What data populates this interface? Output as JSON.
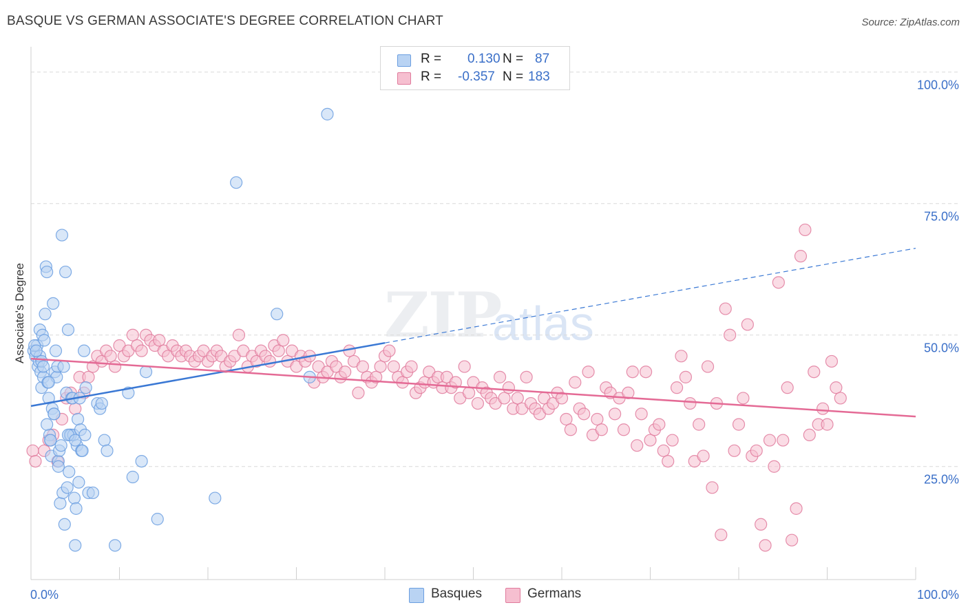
{
  "title": "BASQUE VS GERMAN ASSOCIATE'S DEGREE CORRELATION CHART",
  "source": "Source: ZipAtlas.com",
  "watermark_zip": "ZIP",
  "watermark_atlas": "atlas",
  "legend": {
    "rows": [
      {
        "r_label": "R =",
        "r_value": "0.130",
        "n_label": "N =",
        "n_value": "87",
        "color": "#b9d3f3",
        "border": "#6a9ee0"
      },
      {
        "r_label": "R =",
        "r_value": "-0.357",
        "n_label": "N =",
        "n_value": "183",
        "color": "#f6bfd0",
        "border": "#e07a9c"
      }
    ]
  },
  "bottom_legend": [
    {
      "label": "Basques",
      "color": "#b9d3f3",
      "border": "#6a9ee0"
    },
    {
      "label": "Germans",
      "color": "#f6bfd0",
      "border": "#e07a9c"
    }
  ],
  "chart_data": {
    "type": "scatter",
    "title": "BASQUE VS GERMAN ASSOCIATE'S DEGREE CORRELATION CHART",
    "xlabel": "",
    "ylabel": "Associate's Degree",
    "xlim": [
      0,
      100
    ],
    "ylim": [
      0,
      100
    ],
    "x_tick_labels": [
      "0.0%",
      "100.0%"
    ],
    "y_tick_labels": [
      "100.0%",
      "75.0%",
      "50.0%",
      "25.0%"
    ],
    "y_ticks": [
      100,
      75,
      50,
      25
    ],
    "grid": true,
    "legend_position": "top-center",
    "colors": {
      "basques": "#3a78d4",
      "germans": "#e46a95"
    },
    "series": [
      {
        "name": "Basques",
        "marker_fill": "#b9d3f3",
        "marker_edge": "#6a9ee0",
        "trend": {
          "x": [
            0,
            40
          ],
          "y": [
            36.5,
            48.5
          ],
          "dashed_extension": {
            "x": [
              40,
              100
            ],
            "y": [
              48.5,
              66.5
            ]
          }
        },
        "points": [
          [
            0.3,
            47
          ],
          [
            0.5,
            46
          ],
          [
            0.7,
            48
          ],
          [
            0.8,
            44
          ],
          [
            0.9,
            45
          ],
          [
            1.0,
            51
          ],
          [
            1.1,
            43
          ],
          [
            1.2,
            40
          ],
          [
            1.3,
            50
          ],
          [
            1.4,
            42
          ],
          [
            1.5,
            49
          ],
          [
            1.6,
            54
          ],
          [
            1.7,
            63
          ],
          [
            1.8,
            62
          ],
          [
            1.9,
            41
          ],
          [
            2.0,
            38
          ],
          [
            2.1,
            31
          ],
          [
            2.2,
            30
          ],
          [
            2.3,
            27
          ],
          [
            2.4,
            36
          ],
          [
            2.5,
            56
          ],
          [
            2.6,
            35
          ],
          [
            2.7,
            43
          ],
          [
            2.8,
            47
          ],
          [
            2.9,
            42
          ],
          [
            3.0,
            44
          ],
          [
            3.1,
            26
          ],
          [
            3.2,
            28
          ],
          [
            3.3,
            18
          ],
          [
            3.4,
            29
          ],
          [
            3.5,
            69
          ],
          [
            3.6,
            20
          ],
          [
            3.7,
            44
          ],
          [
            3.8,
            14
          ],
          [
            3.9,
            62
          ],
          [
            4.0,
            39
          ],
          [
            4.1,
            21
          ],
          [
            4.2,
            51
          ],
          [
            4.3,
            24
          ],
          [
            4.4,
            31
          ],
          [
            4.5,
            31
          ],
          [
            4.6,
            38
          ],
          [
            4.7,
            38
          ],
          [
            4.8,
            31
          ],
          [
            4.9,
            19
          ],
          [
            5.0,
            10
          ],
          [
            5.1,
            17
          ],
          [
            5.2,
            29
          ],
          [
            5.3,
            34
          ],
          [
            5.4,
            22
          ],
          [
            5.5,
            38
          ],
          [
            5.6,
            32
          ],
          [
            5.7,
            28
          ],
          [
            5.8,
            28
          ],
          [
            6.0,
            47
          ],
          [
            6.2,
            40
          ],
          [
            6.5,
            20
          ],
          [
            7.5,
            37
          ],
          [
            7.8,
            36
          ],
          [
            8.0,
            37
          ],
          [
            8.3,
            30
          ],
          [
            8.6,
            28
          ],
          [
            9.5,
            10
          ],
          [
            11.0,
            39
          ],
          [
            11.5,
            23
          ],
          [
            12.5,
            26
          ],
          [
            13.0,
            43
          ],
          [
            14.3,
            15
          ],
          [
            20.8,
            19
          ],
          [
            23.2,
            79
          ],
          [
            27.8,
            54
          ],
          [
            31.5,
            42
          ],
          [
            33.5,
            92
          ],
          [
            1.0,
            46
          ],
          [
            1.2,
            45
          ],
          [
            1.8,
            33
          ],
          [
            2.2,
            30
          ],
          [
            2.6,
            35
          ],
          [
            3.1,
            25
          ],
          [
            4.2,
            31
          ],
          [
            5.0,
            30
          ],
          [
            6.1,
            31
          ],
          [
            7.0,
            20
          ],
          [
            0.4,
            48
          ],
          [
            0.6,
            47
          ],
          [
            1.4,
            44
          ],
          [
            2.0,
            41
          ]
        ]
      },
      {
        "name": "Germans",
        "marker_fill": "#f6bfd0",
        "marker_edge": "#e07a9c",
        "trend": {
          "x": [
            0,
            100
          ],
          "y": [
            45.5,
            34.5
          ]
        },
        "points": [
          [
            0.2,
            28
          ],
          [
            0.5,
            26
          ],
          [
            1.5,
            28
          ],
          [
            2.0,
            30
          ],
          [
            2.5,
            31
          ],
          [
            3.0,
            26
          ],
          [
            3.5,
            34
          ],
          [
            4.0,
            38
          ],
          [
            4.5,
            39
          ],
          [
            5.0,
            36
          ],
          [
            5.5,
            42
          ],
          [
            6.0,
            39
          ],
          [
            6.5,
            42
          ],
          [
            7.0,
            44
          ],
          [
            7.5,
            46
          ],
          [
            8.0,
            45
          ],
          [
            8.5,
            47
          ],
          [
            9.0,
            46
          ],
          [
            9.5,
            44
          ],
          [
            10.0,
            48
          ],
          [
            10.5,
            46
          ],
          [
            11.0,
            47
          ],
          [
            11.5,
            50
          ],
          [
            12.0,
            48
          ],
          [
            12.5,
            47
          ],
          [
            13.0,
            50
          ],
          [
            13.5,
            49
          ],
          [
            14.0,
            48
          ],
          [
            14.5,
            49
          ],
          [
            15.0,
            47
          ],
          [
            15.5,
            46
          ],
          [
            16.0,
            48
          ],
          [
            16.5,
            47
          ],
          [
            17.0,
            46
          ],
          [
            17.5,
            47
          ],
          [
            18.0,
            46
          ],
          [
            18.5,
            45
          ],
          [
            19.0,
            46
          ],
          [
            19.5,
            47
          ],
          [
            20.0,
            45
          ],
          [
            20.5,
            46
          ],
          [
            21.0,
            47
          ],
          [
            21.5,
            46
          ],
          [
            22.0,
            44
          ],
          [
            22.5,
            45
          ],
          [
            23.0,
            46
          ],
          [
            23.5,
            50
          ],
          [
            24.0,
            47
          ],
          [
            24.5,
            44
          ],
          [
            25.0,
            46
          ],
          [
            25.5,
            45
          ],
          [
            26.0,
            47
          ],
          [
            26.5,
            46
          ],
          [
            27.0,
            45
          ],
          [
            27.5,
            48
          ],
          [
            28.0,
            47
          ],
          [
            28.5,
            49
          ],
          [
            29.0,
            45
          ],
          [
            29.5,
            47
          ],
          [
            30.0,
            44
          ],
          [
            30.5,
            46
          ],
          [
            31.0,
            45
          ],
          [
            31.5,
            46
          ],
          [
            32.0,
            41
          ],
          [
            32.5,
            44
          ],
          [
            33.0,
            42
          ],
          [
            33.5,
            43
          ],
          [
            34.0,
            45
          ],
          [
            34.5,
            44
          ],
          [
            35.0,
            42
          ],
          [
            35.5,
            43
          ],
          [
            36.0,
            47
          ],
          [
            36.5,
            45
          ],
          [
            37.0,
            39
          ],
          [
            37.5,
            44
          ],
          [
            38.0,
            42
          ],
          [
            38.5,
            41
          ],
          [
            39.0,
            42
          ],
          [
            39.5,
            44
          ],
          [
            40.0,
            46
          ],
          [
            40.5,
            47
          ],
          [
            41.0,
            44
          ],
          [
            41.5,
            42
          ],
          [
            42.0,
            41
          ],
          [
            42.5,
            43
          ],
          [
            43.0,
            44
          ],
          [
            43.5,
            39
          ],
          [
            44.0,
            40
          ],
          [
            44.5,
            41
          ],
          [
            45.0,
            43
          ],
          [
            45.5,
            41
          ],
          [
            46.0,
            42
          ],
          [
            46.5,
            40
          ],
          [
            47.0,
            42
          ],
          [
            47.5,
            40
          ],
          [
            48.0,
            41
          ],
          [
            48.5,
            38
          ],
          [
            49.0,
            44
          ],
          [
            49.5,
            39
          ],
          [
            50.0,
            41
          ],
          [
            50.5,
            37
          ],
          [
            51.0,
            40
          ],
          [
            51.5,
            39
          ],
          [
            52.0,
            38
          ],
          [
            52.5,
            37
          ],
          [
            53.0,
            42
          ],
          [
            53.5,
            38
          ],
          [
            54.0,
            40
          ],
          [
            54.5,
            36
          ],
          [
            55.0,
            38
          ],
          [
            55.5,
            36
          ],
          [
            56.0,
            42
          ],
          [
            56.5,
            37
          ],
          [
            57.0,
            36
          ],
          [
            57.5,
            35
          ],
          [
            58.0,
            38
          ],
          [
            58.5,
            36
          ],
          [
            59.0,
            37
          ],
          [
            59.5,
            39
          ],
          [
            60.0,
            38
          ],
          [
            60.5,
            34
          ],
          [
            61.0,
            32
          ],
          [
            61.5,
            41
          ],
          [
            62.0,
            36
          ],
          [
            62.5,
            35
          ],
          [
            63.0,
            43
          ],
          [
            63.5,
            31
          ],
          [
            64.0,
            34
          ],
          [
            64.5,
            32
          ],
          [
            65.0,
            40
          ],
          [
            65.5,
            39
          ],
          [
            66.0,
            35
          ],
          [
            66.5,
            38
          ],
          [
            67.0,
            32
          ],
          [
            67.5,
            39
          ],
          [
            68.0,
            43
          ],
          [
            68.5,
            29
          ],
          [
            69.0,
            35
          ],
          [
            69.5,
            43
          ],
          [
            70.0,
            30
          ],
          [
            70.5,
            32
          ],
          [
            71.0,
            33
          ],
          [
            71.5,
            28
          ],
          [
            72.0,
            26
          ],
          [
            72.5,
            30
          ],
          [
            73.0,
            40
          ],
          [
            73.5,
            46
          ],
          [
            74.0,
            42
          ],
          [
            74.5,
            37
          ],
          [
            75.0,
            26
          ],
          [
            75.5,
            33
          ],
          [
            76.0,
            27
          ],
          [
            76.5,
            44
          ],
          [
            77.0,
            21
          ],
          [
            77.5,
            37
          ],
          [
            78.0,
            12
          ],
          [
            78.5,
            55
          ],
          [
            79.0,
            50
          ],
          [
            79.5,
            28
          ],
          [
            80.0,
            33
          ],
          [
            80.5,
            38
          ],
          [
            81.0,
            52
          ],
          [
            81.5,
            27
          ],
          [
            82.0,
            28
          ],
          [
            82.5,
            14
          ],
          [
            83.0,
            10
          ],
          [
            83.5,
            30
          ],
          [
            84.0,
            25
          ],
          [
            84.5,
            60
          ],
          [
            85.0,
            30
          ],
          [
            85.5,
            40
          ],
          [
            86.0,
            11
          ],
          [
            86.5,
            17
          ],
          [
            87.0,
            65
          ],
          [
            87.5,
            70
          ],
          [
            88.0,
            31
          ],
          [
            88.5,
            43
          ],
          [
            89.0,
            33
          ],
          [
            89.5,
            36
          ],
          [
            90.0,
            33
          ],
          [
            90.5,
            45
          ],
          [
            91.0,
            40
          ],
          [
            91.5,
            38
          ]
        ]
      }
    ]
  }
}
